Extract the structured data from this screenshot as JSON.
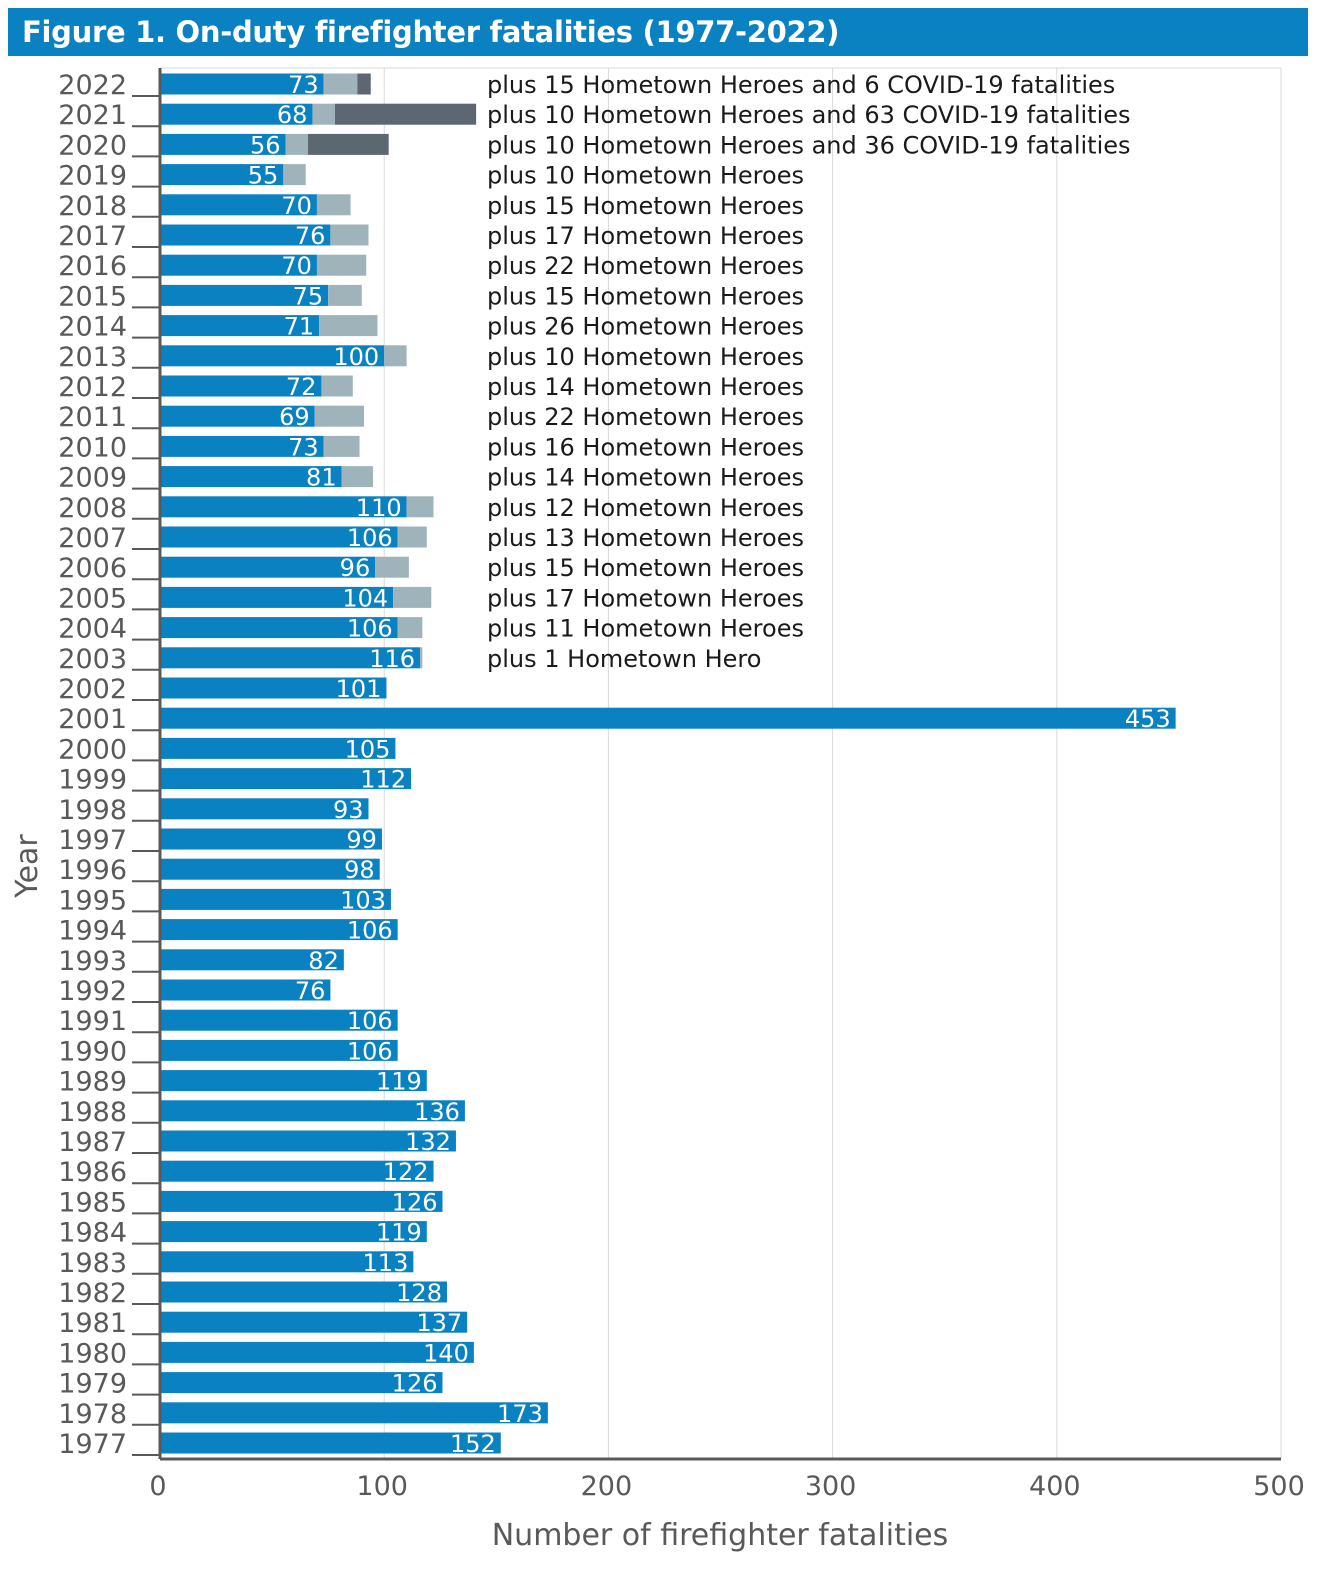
{
  "title": "Figure 1. On-duty firefighter fatalities (1977-2022)",
  "colors": {
    "title_bg": "#0a81c1",
    "on_duty": "#0a81c1",
    "hometown_heroes": "#9fb4ba",
    "covid": "#5d6771",
    "grid": "#d9d9d9",
    "axis": "#595959",
    "text": "#595959"
  },
  "chart_data": {
    "type": "bar",
    "orientation": "horizontal",
    "stacked": true,
    "xlabel": "Number of firefighter fatalities",
    "ylabel": "Year",
    "xlim": [
      0,
      500
    ],
    "xticks": [
      0,
      100,
      200,
      300,
      400,
      500
    ],
    "grid": true,
    "categories": [
      "2022",
      "2021",
      "2020",
      "2019",
      "2018",
      "2017",
      "2016",
      "2015",
      "2014",
      "2013",
      "2012",
      "2011",
      "2010",
      "2009",
      "2008",
      "2007",
      "2006",
      "2005",
      "2004",
      "2003",
      "2002",
      "2001",
      "2000",
      "1999",
      "1998",
      "1997",
      "1996",
      "1995",
      "1994",
      "1993",
      "1992",
      "1991",
      "1990",
      "1989",
      "1988",
      "1987",
      "1986",
      "1985",
      "1984",
      "1983",
      "1982",
      "1981",
      "1980",
      "1979",
      "1978",
      "1977"
    ],
    "series": [
      {
        "values": [
          73,
          68,
          56,
          55,
          70,
          76,
          70,
          75,
          71,
          100,
          72,
          69,
          73,
          81,
          110,
          106,
          96,
          104,
          106,
          116,
          101,
          453,
          105,
          112,
          93,
          99,
          98,
          103,
          106,
          82,
          76,
          106,
          106,
          119,
          136,
          132,
          122,
          126,
          119,
          113,
          128,
          137,
          140,
          126,
          173,
          152
        ]
      },
      {
        "values": [
          15,
          10,
          10,
          10,
          15,
          17,
          22,
          15,
          26,
          10,
          14,
          22,
          16,
          14,
          12,
          13,
          15,
          17,
          11,
          1,
          0,
          0,
          0,
          0,
          0,
          0,
          0,
          0,
          0,
          0,
          0,
          0,
          0,
          0,
          0,
          0,
          0,
          0,
          0,
          0,
          0,
          0,
          0,
          0,
          0,
          0
        ]
      },
      {
        "values": [
          6,
          63,
          36,
          0,
          0,
          0,
          0,
          0,
          0,
          0,
          0,
          0,
          0,
          0,
          0,
          0,
          0,
          0,
          0,
          0,
          0,
          0,
          0,
          0,
          0,
          0,
          0,
          0,
          0,
          0,
          0,
          0,
          0,
          0,
          0,
          0,
          0,
          0,
          0,
          0,
          0,
          0,
          0,
          0,
          0,
          0
        ]
      }
    ],
    "annotations": [
      "plus 15 Hometown Heroes and 6 COVID-19 fatalities",
      "plus 10 Hometown Heroes and 63 COVID-19 fatalities",
      "plus 10 Hometown Heroes and 36 COVID-19 fatalities",
      "plus 10 Hometown Heroes",
      "plus 15 Hometown Heroes",
      "plus 17 Hometown Heroes",
      "plus 22 Hometown Heroes",
      "plus 15 Hometown Heroes",
      "plus 26 Hometown Heroes",
      "plus 10 Hometown Heroes",
      "plus 14 Hometown Heroes",
      "plus 22 Hometown Heroes",
      "plus 16 Hometown Heroes",
      "plus 14 Hometown Heroes",
      "plus 12 Hometown Heroes",
      "plus 13 Hometown Heroes",
      "plus 15 Hometown Heroes",
      "plus 17 Hometown Heroes",
      "plus 11 Hometown Heroes",
      "plus 1 Hometown Hero"
    ]
  }
}
